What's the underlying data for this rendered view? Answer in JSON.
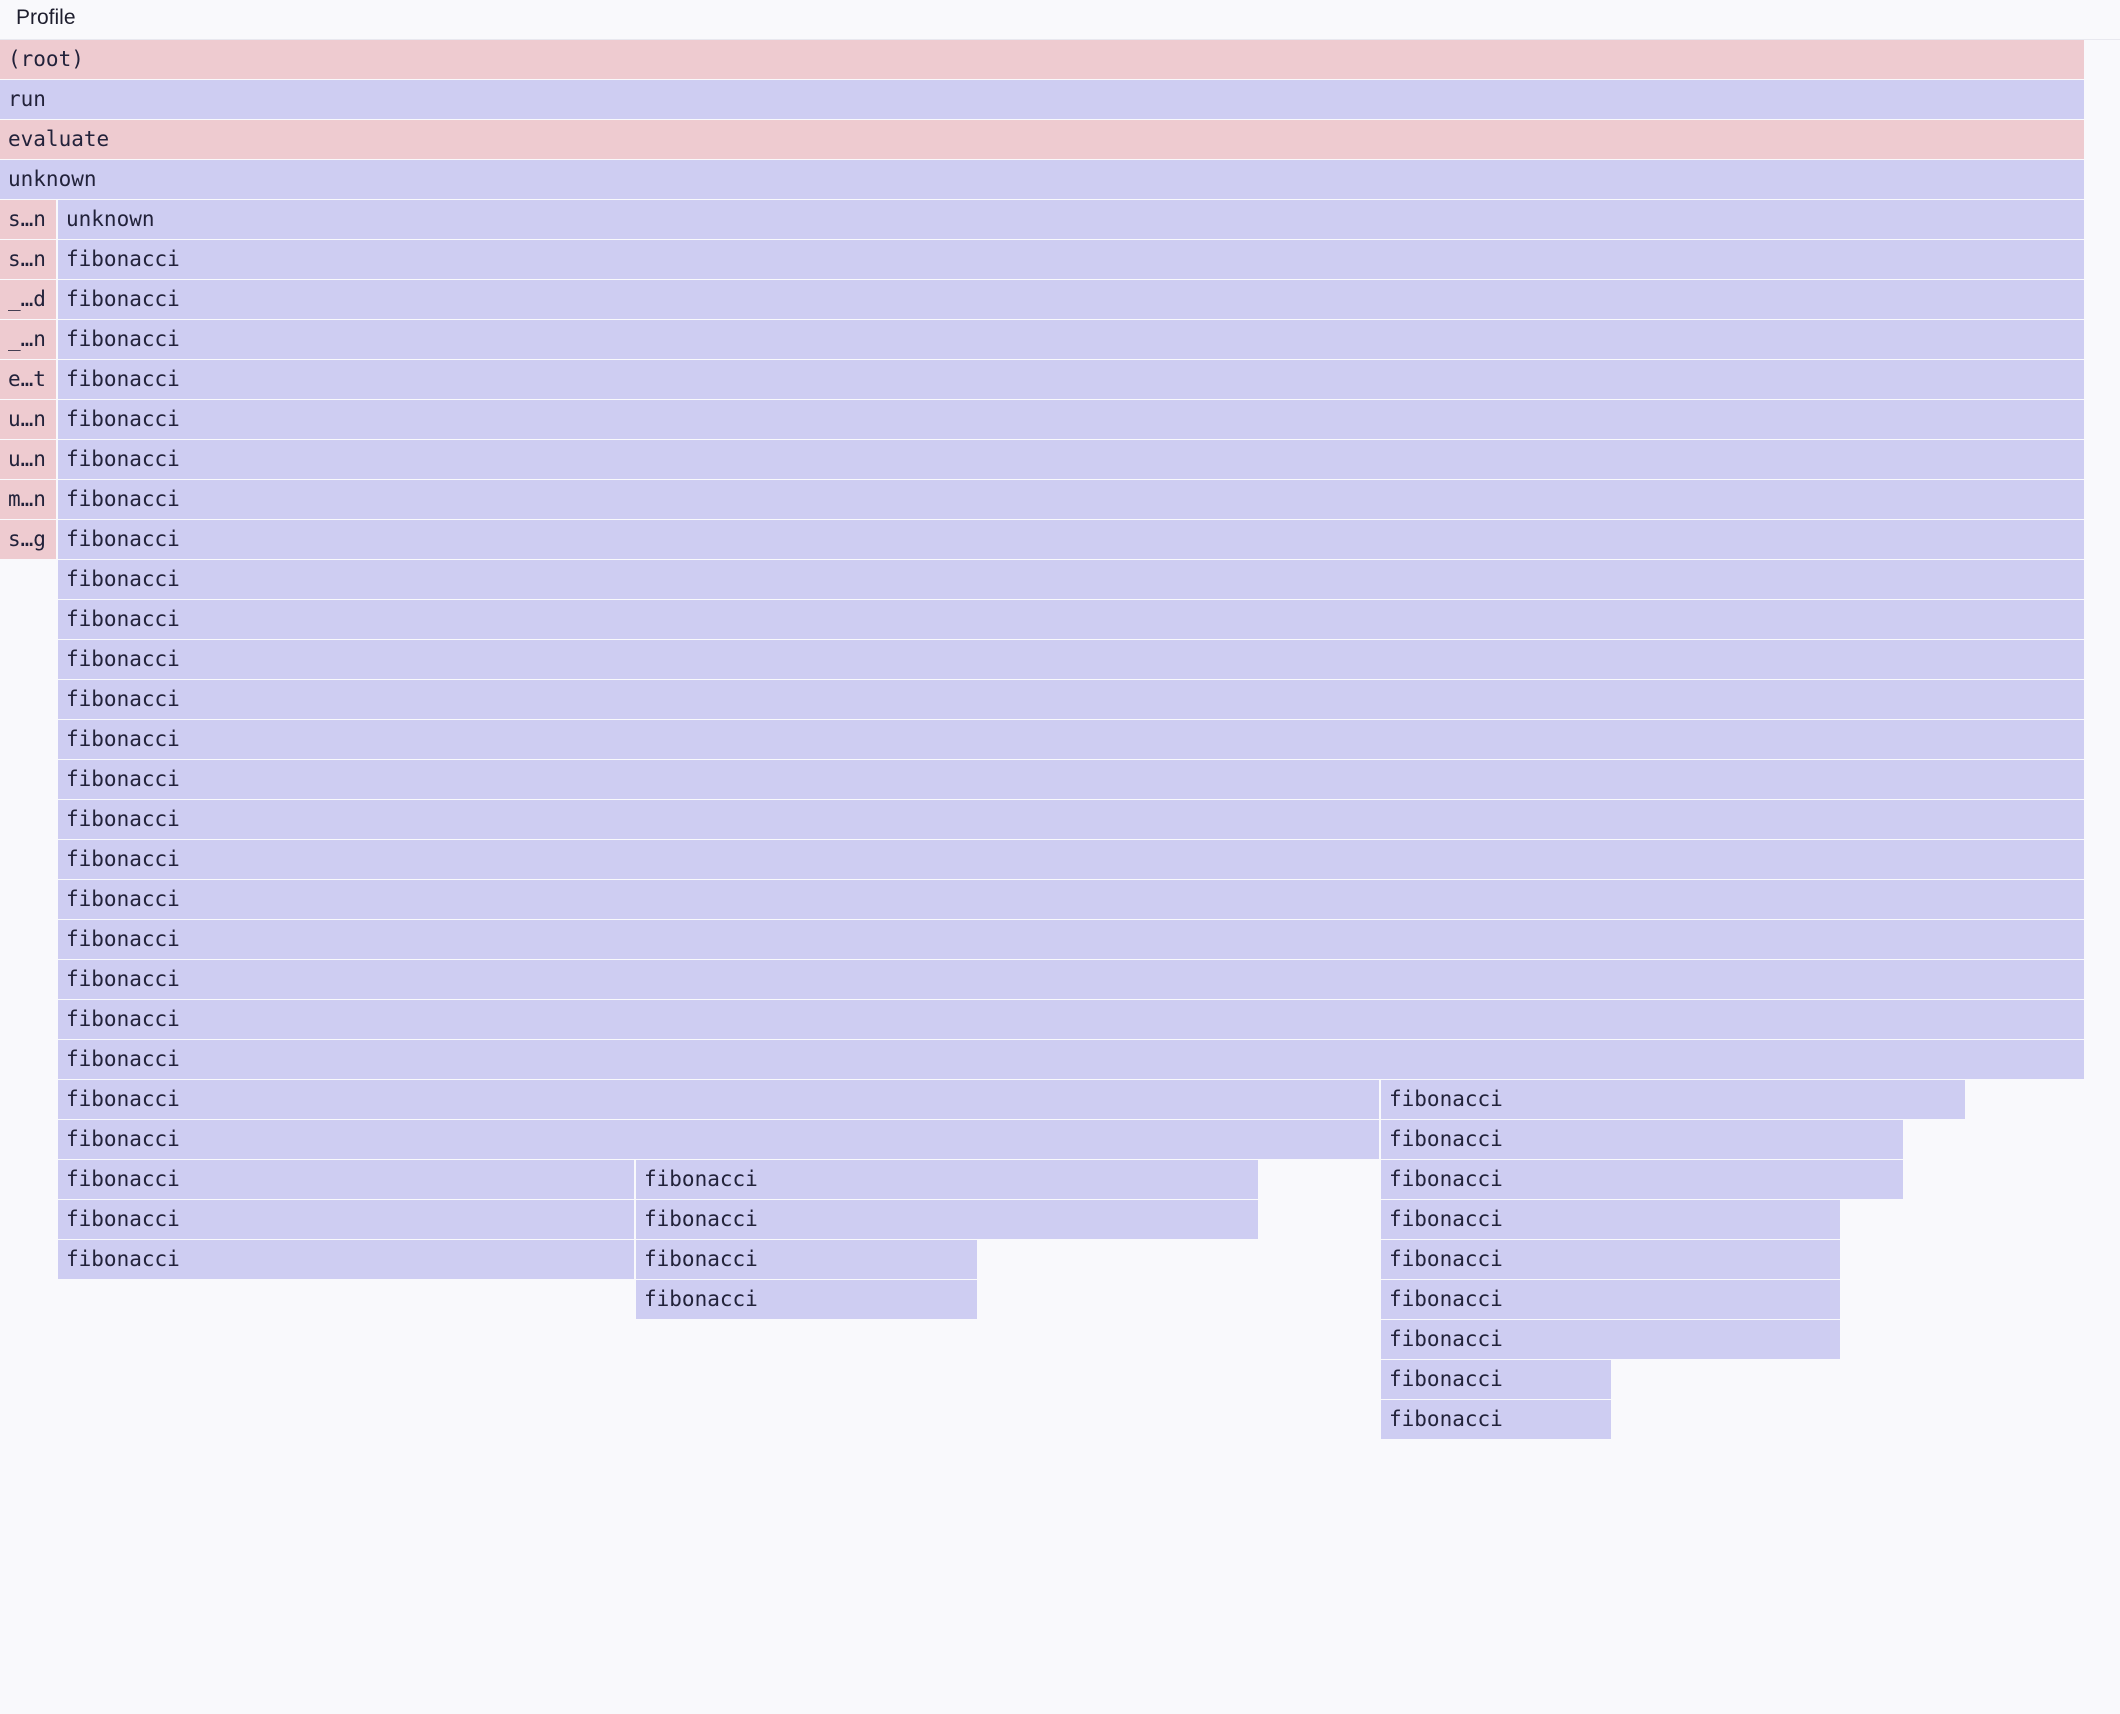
{
  "header": {
    "title": "Profile"
  },
  "colors": {
    "pink": "#eecbd0",
    "blue": "#cecdf2",
    "background": "#f9f9fc",
    "text": "#22223a"
  },
  "frames": [
    {
      "label": "(root)",
      "kind": "pink"
    },
    {
      "label": "run",
      "kind": "blue"
    },
    {
      "label": "evaluate",
      "kind": "pink"
    },
    {
      "label": "unknown",
      "kind": "blue"
    },
    {
      "label": "s…n",
      "kind": "pink"
    },
    {
      "label": "s…n",
      "kind": "pink"
    },
    {
      "label": "_…d",
      "kind": "pink"
    },
    {
      "label": "_…n",
      "kind": "pink"
    },
    {
      "label": "e…t",
      "kind": "pink"
    },
    {
      "label": "u…n",
      "kind": "pink"
    },
    {
      "label": "u…n",
      "kind": "pink"
    },
    {
      "label": "m…n",
      "kind": "pink"
    },
    {
      "label": "s…g",
      "kind": "pink"
    },
    {
      "label": "unknown",
      "kind": "blue"
    },
    {
      "label": "fibonacci",
      "kind": "blue"
    },
    {
      "label": "fibonacci",
      "kind": "blue"
    },
    {
      "label": "fibonacci",
      "kind": "blue"
    },
    {
      "label": "fibonacci",
      "kind": "blue"
    },
    {
      "label": "fibonacci",
      "kind": "blue"
    },
    {
      "label": "fibonacci",
      "kind": "blue"
    },
    {
      "label": "fibonacci",
      "kind": "blue"
    },
    {
      "label": "fibonacci",
      "kind": "blue"
    },
    {
      "label": "fibonacci",
      "kind": "blue"
    },
    {
      "label": "fibonacci",
      "kind": "blue"
    },
    {
      "label": "fibonacci",
      "kind": "blue"
    },
    {
      "label": "fibonacci",
      "kind": "blue"
    },
    {
      "label": "fibonacci",
      "kind": "blue"
    },
    {
      "label": "fibonacci",
      "kind": "blue"
    },
    {
      "label": "fibonacci",
      "kind": "blue"
    },
    {
      "label": "fibonacci",
      "kind": "blue"
    },
    {
      "label": "fibonacci",
      "kind": "blue"
    },
    {
      "label": "fibonacci",
      "kind": "blue"
    },
    {
      "label": "fibonacci",
      "kind": "blue"
    },
    {
      "label": "fibonacci",
      "kind": "blue"
    },
    {
      "label": "fibonacci",
      "kind": "blue"
    },
    {
      "label": "fibonacci",
      "kind": "blue"
    },
    {
      "label": "fibonacci",
      "kind": "blue"
    },
    {
      "label": "fibonacci",
      "kind": "blue"
    },
    {
      "label": "fibonacci",
      "kind": "blue"
    },
    {
      "label": "fibonacci",
      "kind": "blue"
    },
    {
      "label": "fibonacci",
      "kind": "blue"
    },
    {
      "label": "fibonacci",
      "kind": "blue"
    },
    {
      "label": "fibonacci",
      "kind": "blue"
    },
    {
      "label": "fibonacci",
      "kind": "blue"
    },
    {
      "label": "fibonacci",
      "kind": "blue"
    },
    {
      "label": "fibonacci",
      "kind": "blue"
    },
    {
      "label": "fibonacci",
      "kind": "blue"
    },
    {
      "label": "fibonacci",
      "kind": "blue"
    },
    {
      "label": "fibonacci",
      "kind": "blue"
    },
    {
      "label": "fibonacci",
      "kind": "blue"
    },
    {
      "label": "fibonacci",
      "kind": "blue"
    },
    {
      "label": "fibonacci",
      "kind": "blue"
    },
    {
      "label": "fibonacci",
      "kind": "blue"
    },
    {
      "label": "fibonacci",
      "kind": "blue"
    }
  ]
}
